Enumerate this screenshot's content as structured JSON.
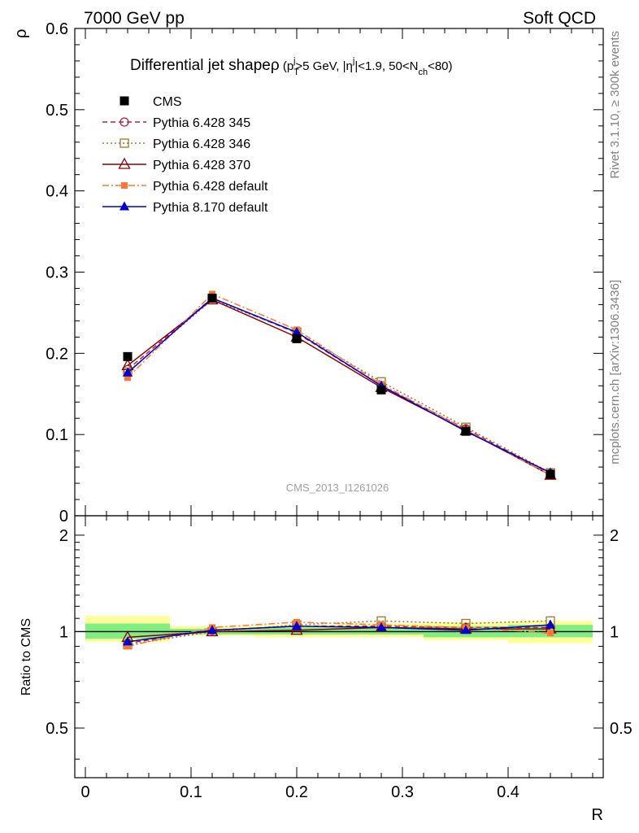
{
  "header": {
    "left_label": "7000 GeV pp",
    "right_label": "Soft QCD"
  },
  "side_labels": {
    "rivet": "Rivet 3.1.10, ≥ 300k events",
    "mcplots": "mcplots.cern.ch [arXiv:1306.3436]"
  },
  "watermark": "CMS_2013_I1261026",
  "chart_data": [
    {
      "type": "line",
      "panel": "main",
      "title": {
        "main": "Differential jet shape",
        "rho": "ρ",
        "open": " (p",
        "pt_sub": "T",
        "pt_sup": "j",
        "mid": ">5 GeV, |η",
        "eta_sup": "j",
        "mid2": "|<1.9, 50<N",
        "nch_sub": "ch",
        "close": "<80)"
      },
      "xlabel": "",
      "ylabel": "ρ",
      "xlim": [
        -0.01,
        0.49
      ],
      "ylim": [
        0,
        0.6
      ],
      "x_ticks": [
        0,
        0.1,
        0.2,
        0.3,
        0.4
      ],
      "y_ticks": [
        0,
        0.1,
        0.2,
        0.3,
        0.4,
        0.5,
        0.6
      ],
      "y_tick_labels": [
        "0",
        "0.1",
        "0.2",
        "0.3",
        "0.4",
        "0.5",
        "0.6"
      ],
      "legend_position": "top-left",
      "x": [
        0.04,
        0.12,
        0.2,
        0.28,
        0.36,
        0.44
      ],
      "series": [
        {
          "name": "CMS",
          "values": [
            0.196,
            0.268,
            0.218,
            0.155,
            0.104,
            0.051
          ],
          "color": "#000000",
          "marker": "filled-square",
          "line": "none"
        },
        {
          "name": "Pythia 6.428 345",
          "values": [
            0.18,
            0.268,
            0.225,
            0.16,
            0.107,
            0.052
          ],
          "color": "#b22244",
          "marker": "open-circle",
          "line": "dashed"
        },
        {
          "name": "Pythia 6.428 346",
          "values": [
            0.177,
            0.266,
            0.226,
            0.165,
            0.109,
            0.053
          ],
          "color": "#9b7a2e",
          "marker": "open-square",
          "line": "dotted"
        },
        {
          "name": "Pythia 6.428 370",
          "values": [
            0.185,
            0.266,
            0.22,
            0.158,
            0.105,
            0.05
          ],
          "color": "#8b0000",
          "marker": "open-triangle",
          "line": "solid"
        },
        {
          "name": "Pythia 6.428 default",
          "values": [
            0.17,
            0.273,
            0.229,
            0.162,
            0.106,
            0.05
          ],
          "color": "#ff7733",
          "marker": "filled-square-small",
          "line": "dashdot"
        },
        {
          "name": "Pythia 8.170 default",
          "values": [
            0.176,
            0.268,
            0.226,
            0.16,
            0.104,
            0.053
          ],
          "color": "#0000cc",
          "marker": "filled-triangle",
          "line": "solid"
        }
      ]
    },
    {
      "type": "line",
      "panel": "ratio",
      "xlabel": "R",
      "ylabel": "Ratio to CMS",
      "xlim": [
        -0.01,
        0.49
      ],
      "ylim": [
        0.35,
        2.3
      ],
      "x_ticks": [
        0,
        0.1,
        0.2,
        0.3,
        0.4
      ],
      "x_tick_labels": [
        "0",
        "0.1",
        "0.2",
        "0.3",
        "0.4"
      ],
      "y_ticks": [
        0.5,
        1,
        2
      ],
      "y_tick_labels": [
        "0.5",
        "1",
        "2"
      ],
      "reference_line": 1,
      "bands": [
        {
          "x_range": [
            0.0,
            0.08
          ],
          "inner": [
            0.95,
            1.06
          ],
          "outer": [
            0.93,
            1.12
          ]
        },
        {
          "x_range": [
            0.08,
            0.16
          ],
          "inner": [
            0.98,
            1.02
          ],
          "outer": [
            0.97,
            1.04
          ]
        },
        {
          "x_range": [
            0.16,
            0.24
          ],
          "inner": [
            0.98,
            1.03
          ],
          "outer": [
            0.96,
            1.05
          ]
        },
        {
          "x_range": [
            0.24,
            0.32
          ],
          "inner": [
            0.98,
            1.03
          ],
          "outer": [
            0.96,
            1.06
          ]
        },
        {
          "x_range": [
            0.32,
            0.4
          ],
          "inner": [
            0.96,
            1.04
          ],
          "outer": [
            0.94,
            1.07
          ]
        },
        {
          "x_range": [
            0.4,
            0.48
          ],
          "inner": [
            0.96,
            1.05
          ],
          "outer": [
            0.92,
            1.08
          ]
        }
      ],
      "band_colors": {
        "inner": "#80ee80",
        "outer": "#ffff99"
      },
      "x": [
        0.04,
        0.12,
        0.2,
        0.28,
        0.36,
        0.44
      ],
      "series": [
        {
          "name": "Pythia 6.428 345",
          "values": [
            0.92,
            1.01,
            1.04,
            1.04,
            1.03,
            1.03
          ],
          "color": "#b22244",
          "marker": "open-circle",
          "line": "dashed"
        },
        {
          "name": "Pythia 6.428 346",
          "values": [
            0.91,
            1.0,
            1.05,
            1.08,
            1.06,
            1.08
          ],
          "color": "#9b7a2e",
          "marker": "open-square",
          "line": "dotted"
        },
        {
          "name": "Pythia 6.428 370",
          "values": [
            0.96,
            1.0,
            1.01,
            1.03,
            1.02,
            1.02
          ],
          "color": "#8b0000",
          "marker": "open-triangle",
          "line": "solid"
        },
        {
          "name": "Pythia 6.428 default",
          "values": [
            0.9,
            1.03,
            1.07,
            1.05,
            1.03,
            0.99
          ],
          "color": "#ff7733",
          "marker": "filled-square-small",
          "line": "dashdot"
        },
        {
          "name": "Pythia 8.170 default",
          "values": [
            0.93,
            1.01,
            1.04,
            1.03,
            1.01,
            1.05
          ],
          "color": "#0000cc",
          "marker": "filled-triangle",
          "line": "solid"
        }
      ]
    }
  ]
}
